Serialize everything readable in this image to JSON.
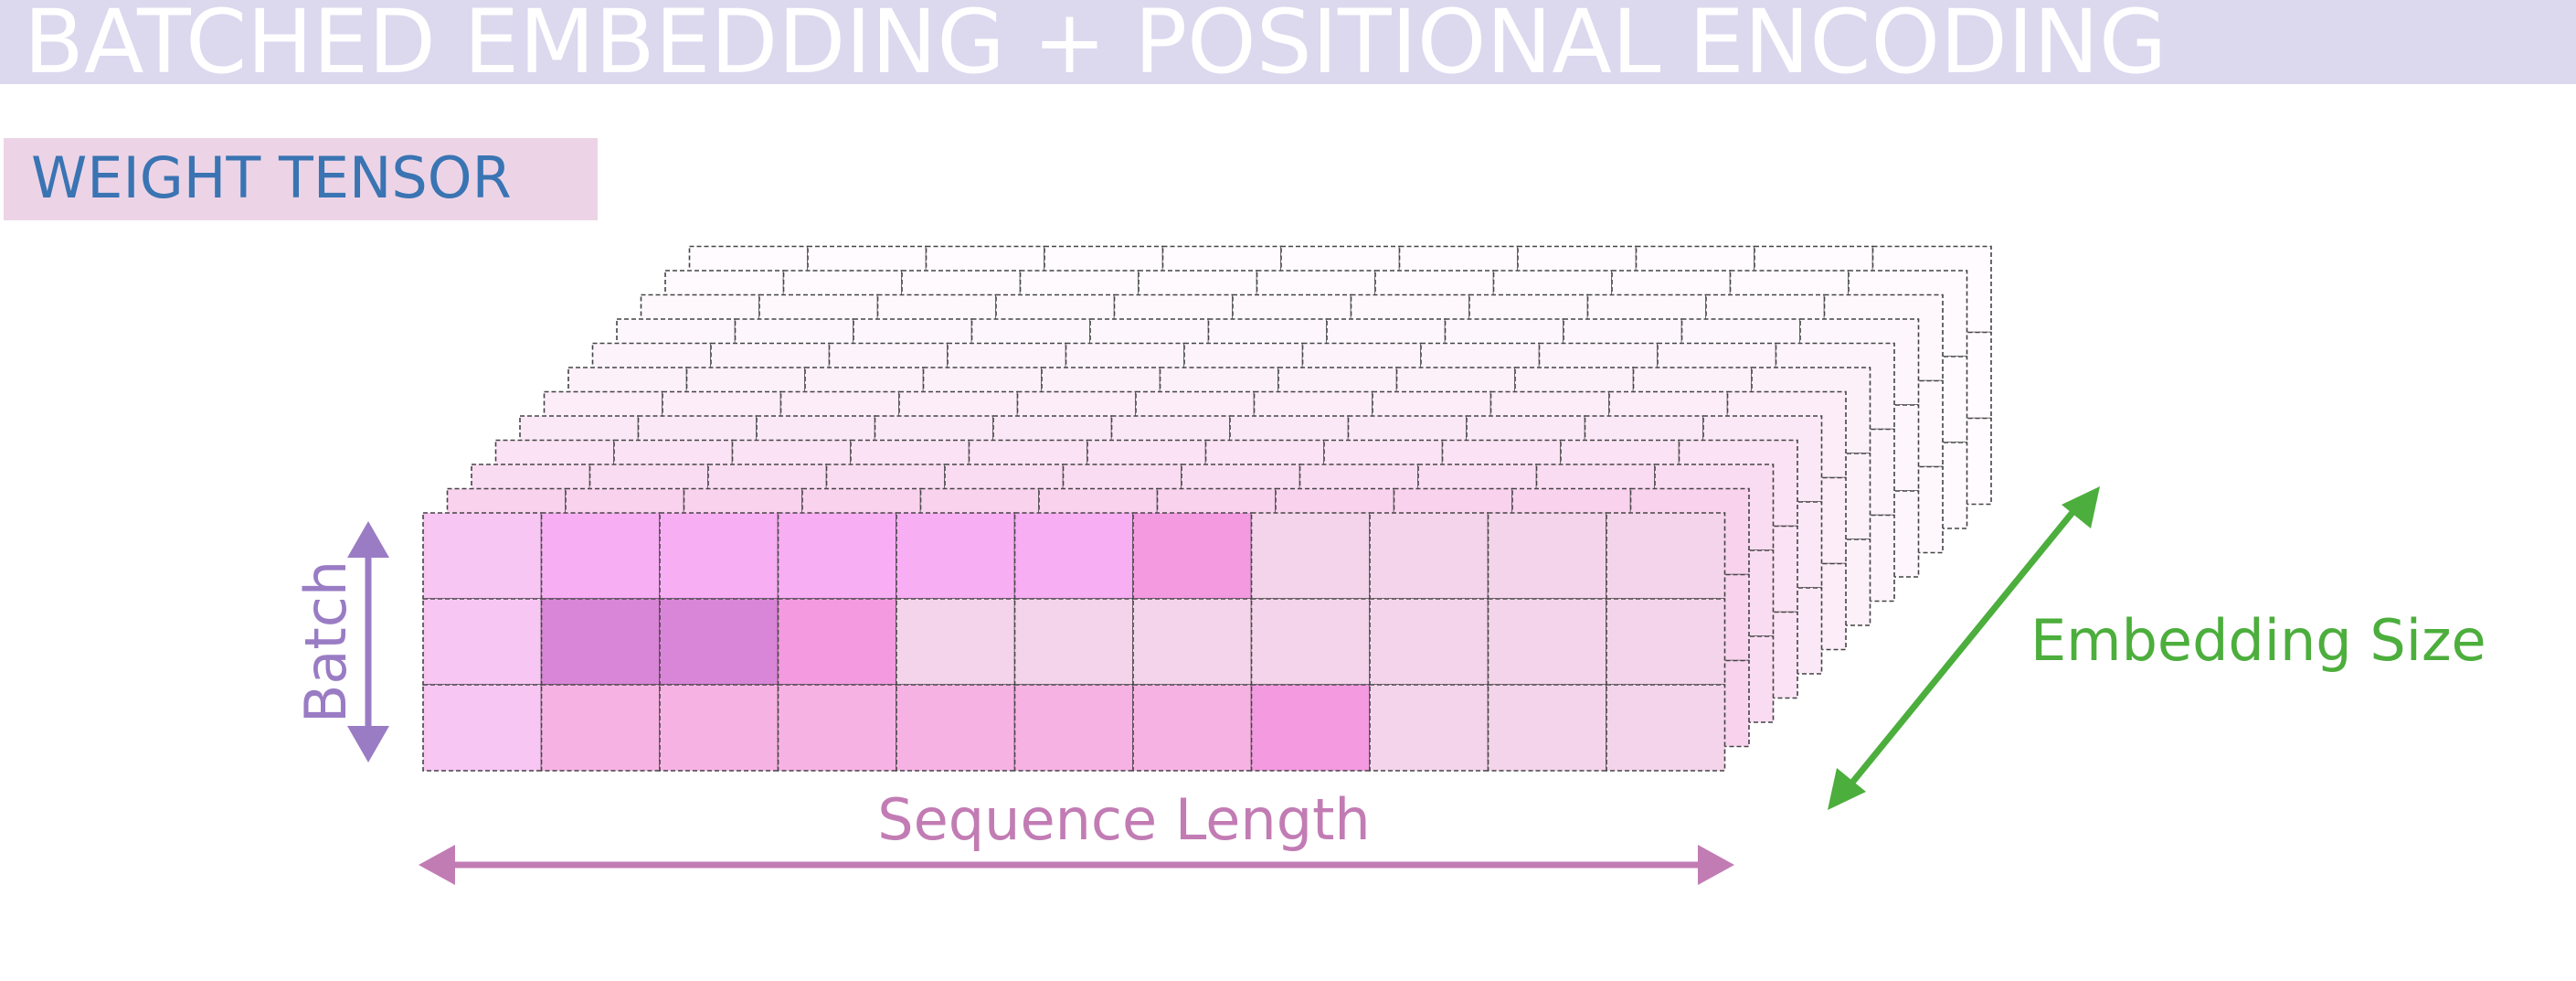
{
  "title": "BATCHED EMBEDDING + POSITIONAL ENCODING",
  "section_label": "WEIGHT TENSOR",
  "axes": {
    "batch": "Batch",
    "sequence": "Sequence Length",
    "embedding": "Embedding Size"
  },
  "tensor": {
    "batch": 3,
    "sequence_length": 11,
    "embedding_layers": 12
  },
  "colors": {
    "title_bar": "#dcd8ee",
    "title_text": "#ffffff",
    "label_box": "#ecd4e6",
    "label_text": "#3a74b3",
    "batch_arrow": "#9a7cc4",
    "sequence_arrow": "#c27cb4",
    "embedding_arrow": "#4cae3c",
    "cell_border": "#444444"
  },
  "front_grid_colors": [
    [
      "#f7c6f3",
      "#f7aef3",
      "#f7aef3",
      "#f7aef3",
      "#f7aef3",
      "#f7aef3",
      "#f39ae0",
      "#f3d4ea",
      "#f3d4ea",
      "#f3d4ea",
      "#f3d4ea"
    ],
    [
      "#f7c6f3",
      "#d985d8",
      "#d985d8",
      "#f39ae0",
      "#f3d4ea",
      "#f3d4ea",
      "#f3d4ea",
      "#f3d4ea",
      "#f3d4ea",
      "#f3d4ea",
      "#f3d4ea"
    ],
    [
      "#f7c6f3",
      "#f7b2e4",
      "#f7b2e4",
      "#f7b2e4",
      "#f7b2e4",
      "#f7b2e4",
      "#f7b2e4",
      "#f39ae0",
      "#f3d4ea",
      "#f3d4ea",
      "#f3d4ea"
    ]
  ],
  "back_layer_colors": [
    "#f7c6ea",
    "#f9d2ee",
    "#fadcf2",
    "#fbe2f4",
    "#fbe8f6",
    "#fcedf8",
    "#fcf0f9",
    "#fdf4fb",
    "#fdf6fc",
    "#fef8fd",
    "#fefafd",
    "#fffbfe"
  ]
}
